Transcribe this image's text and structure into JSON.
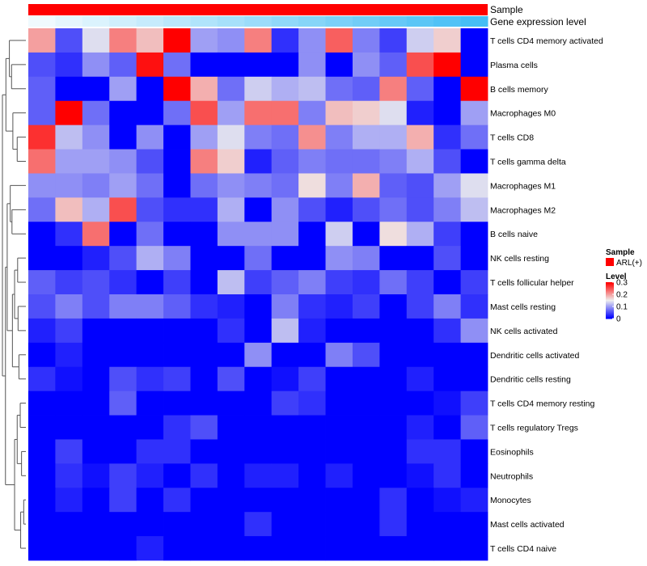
{
  "chart_data": {
    "type": "heatmap",
    "annotations": [
      {
        "label": "Sample"
      },
      {
        "label": "Gene expression level"
      }
    ],
    "sample_color": "#ff0000",
    "rows": [
      "T cells CD4 memory activated",
      "Plasma cells",
      "B cells memory",
      "Macrophages M0",
      "T cells CD8",
      "T cells gamma delta",
      "Macrophages M1",
      "Macrophages M2",
      "B cells naive",
      "NK cells resting",
      "T cells follicular helper",
      "Mast cells resting",
      "NK cells activated",
      "Dendritic cells activated",
      "Dendritic cells resting",
      "T cells CD4 memory resting",
      "T cells regulatory  Tregs",
      "Eosinophils",
      "Neutrophils",
      "Monocytes",
      "Mast cells activated",
      "T cells CD4 naive"
    ],
    "values": [
      [
        0.2,
        0.05,
        0.14,
        0.22,
        0.18,
        0.3,
        0.1,
        0.09,
        0.22,
        0.03,
        0.09,
        0.24,
        0.08,
        0.04,
        0.13,
        0.17,
        0.0
      ],
      [
        0.05,
        0.03,
        0.09,
        0.06,
        0.29,
        0.07,
        0.0,
        0.0,
        0.0,
        0.0,
        0.09,
        0.0,
        0.09,
        0.06,
        0.25,
        0.3,
        0.0
      ],
      [
        0.06,
        0.0,
        0.0,
        0.1,
        0.0,
        0.3,
        0.19,
        0.07,
        0.13,
        0.11,
        0.12,
        0.07,
        0.06,
        0.22,
        0.06,
        0.0,
        0.3
      ],
      [
        0.06,
        0.3,
        0.07,
        0.0,
        0.0,
        0.07,
        0.25,
        0.1,
        0.23,
        0.23,
        0.08,
        0.18,
        0.17,
        0.14,
        0.02,
        0.0,
        0.1
      ],
      [
        0.27,
        0.12,
        0.09,
        0.0,
        0.09,
        0.0,
        0.1,
        0.14,
        0.08,
        0.07,
        0.21,
        0.08,
        0.11,
        0.11,
        0.19,
        0.03,
        0.07
      ],
      [
        0.23,
        0.1,
        0.1,
        0.09,
        0.05,
        0.0,
        0.22,
        0.17,
        0.02,
        0.06,
        0.08,
        0.07,
        0.07,
        0.08,
        0.11,
        0.05,
        0.0
      ],
      [
        0.09,
        0.09,
        0.08,
        0.1,
        0.07,
        0.0,
        0.07,
        0.09,
        0.08,
        0.07,
        0.16,
        0.08,
        0.19,
        0.06,
        0.05,
        0.1,
        0.14
      ],
      [
        0.07,
        0.18,
        0.11,
        0.25,
        0.05,
        0.03,
        0.03,
        0.11,
        0.0,
        0.09,
        0.05,
        0.02,
        0.05,
        0.07,
        0.05,
        0.08,
        0.12
      ],
      [
        0.0,
        0.03,
        0.23,
        0.0,
        0.07,
        0.0,
        0.0,
        0.09,
        0.09,
        0.09,
        0.0,
        0.13,
        0.0,
        0.16,
        0.11,
        0.04,
        0.0
      ],
      [
        0.0,
        0.0,
        0.02,
        0.05,
        0.11,
        0.08,
        0.0,
        0.0,
        0.07,
        0.0,
        0.0,
        0.09,
        0.08,
        0.0,
        0.0,
        0.05,
        0.0
      ],
      [
        0.06,
        0.04,
        0.05,
        0.03,
        0.0,
        0.04,
        0.0,
        0.12,
        0.04,
        0.06,
        0.08,
        0.04,
        0.03,
        0.07,
        0.04,
        0.0,
        0.04
      ],
      [
        0.05,
        0.08,
        0.05,
        0.08,
        0.08,
        0.06,
        0.03,
        0.02,
        0.0,
        0.08,
        0.03,
        0.02,
        0.04,
        0.0,
        0.04,
        0.08,
        0.03
      ],
      [
        0.02,
        0.04,
        0.0,
        0.0,
        0.0,
        0.0,
        0.0,
        0.03,
        0.0,
        0.12,
        0.02,
        0.0,
        0.0,
        0.0,
        0.0,
        0.03,
        0.09
      ],
      [
        0.0,
        0.02,
        0.0,
        0.0,
        0.0,
        0.0,
        0.0,
        0.0,
        0.09,
        0.0,
        0.0,
        0.08,
        0.05,
        0.0,
        0.0,
        0.0,
        0.0
      ],
      [
        0.03,
        0.01,
        0.0,
        0.05,
        0.03,
        0.04,
        0.0,
        0.05,
        0.0,
        0.01,
        0.04,
        0.0,
        0.0,
        0.0,
        0.02,
        0.0,
        0.0
      ],
      [
        0.0,
        0.0,
        0.0,
        0.06,
        0.0,
        0.0,
        0.0,
        0.0,
        0.0,
        0.04,
        0.03,
        0.0,
        0.0,
        0.0,
        0.0,
        0.01,
        0.04
      ],
      [
        0.0,
        0.0,
        0.0,
        0.0,
        0.0,
        0.03,
        0.05,
        0.0,
        0.0,
        0.0,
        0.0,
        0.0,
        0.0,
        0.0,
        0.02,
        0.0,
        0.06
      ],
      [
        0.0,
        0.04,
        0.0,
        0.0,
        0.03,
        0.03,
        0.0,
        0.0,
        0.0,
        0.0,
        0.0,
        0.0,
        0.0,
        0.0,
        0.03,
        0.03,
        0.0
      ],
      [
        0.0,
        0.03,
        0.01,
        0.04,
        0.02,
        0.0,
        0.03,
        0.0,
        0.02,
        0.02,
        0.0,
        0.02,
        0.0,
        0.0,
        0.01,
        0.03,
        0.0
      ],
      [
        0.0,
        0.02,
        0.0,
        0.04,
        0.0,
        0.03,
        0.0,
        0.0,
        0.0,
        0.0,
        0.0,
        0.0,
        0.0,
        0.03,
        0.0,
        0.01,
        0.02
      ],
      [
        0.0,
        0.0,
        0.0,
        0.0,
        0.0,
        0.0,
        0.0,
        0.0,
        0.03,
        0.0,
        0.0,
        0.0,
        0.0,
        0.03,
        0.0,
        0.0,
        0.0
      ],
      [
        0.0,
        0.0,
        0.0,
        0.0,
        0.02,
        0.0,
        0.0,
        0.0,
        0.0,
        0.0,
        0.0,
        0.0,
        0.0,
        0.0,
        0.0,
        0.0,
        0.0
      ]
    ],
    "color_scale": {
      "min": 0,
      "mid": 0.15,
      "max": 0.3,
      "low": "#0000ff",
      "mid_color": "#eeeeee",
      "high": "#ff0000"
    },
    "legend": {
      "sample_title": "Sample",
      "sample_item": "ARL(+)",
      "level_title": "Level",
      "ticks": [
        "0.3",
        "0.2",
        "0.1",
        "0"
      ],
      "tick_values": [
        0.3,
        0.2,
        0.1,
        0
      ],
      "placement": "right"
    }
  }
}
